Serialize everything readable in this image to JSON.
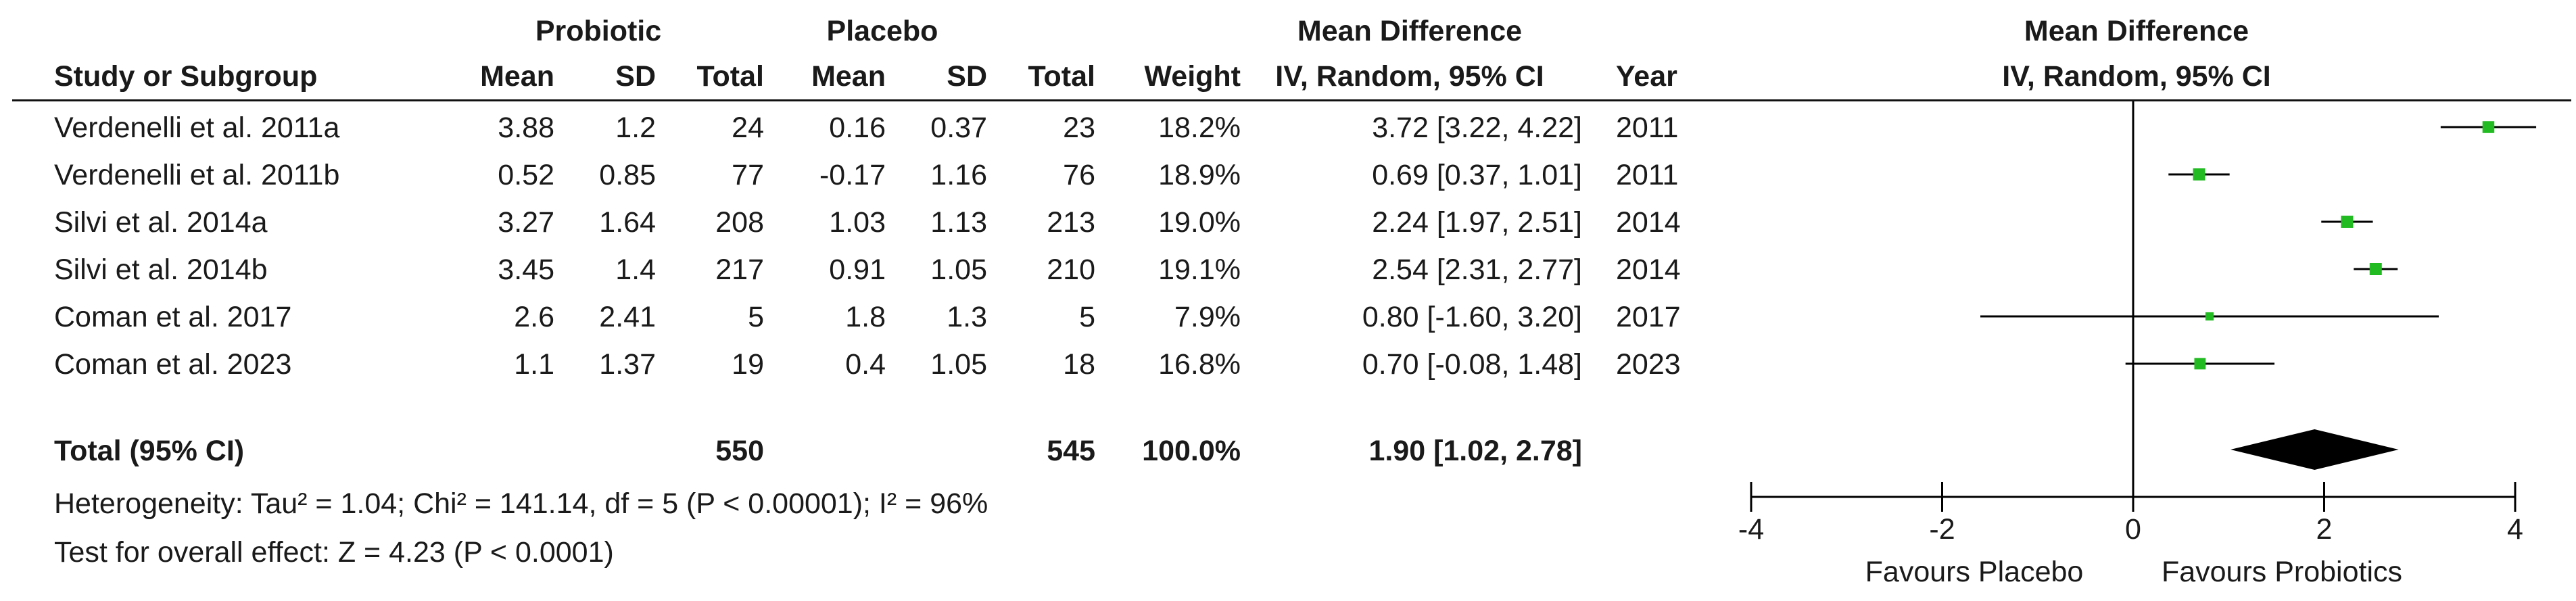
{
  "headers": {
    "probiotic_group": "Probiotic",
    "placebo_group": "Placebo",
    "md_group": "Mean Difference",
    "study_col": "Study or Subgroup",
    "mean_col": "Mean",
    "sd_col": "SD",
    "total_col": "Total",
    "weight_col": "Weight",
    "md_method": "IV, Random, 95% CI",
    "year_col": "Year",
    "plot_title": "Mean Difference",
    "plot_method": "IV, Random, 95% CI"
  },
  "studies": [
    {
      "name": "Verdenelli et al. 2011a",
      "p_mean": "3.88",
      "p_sd": "1.2",
      "p_total": "24",
      "c_mean": "0.16",
      "c_sd": "0.37",
      "c_total": "23",
      "weight": "18.2%",
      "ci_text": "3.72 [3.22, 4.22]",
      "year": "2011"
    },
    {
      "name": "Verdenelli et al. 2011b",
      "p_mean": "0.52",
      "p_sd": "0.85",
      "p_total": "77",
      "c_mean": "-0.17",
      "c_sd": "1.16",
      "c_total": "76",
      "weight": "18.9%",
      "ci_text": "0.69 [0.37, 1.01]",
      "year": "2011"
    },
    {
      "name": "Silvi et al. 2014a",
      "p_mean": "3.27",
      "p_sd": "1.64",
      "p_total": "208",
      "c_mean": "1.03",
      "c_sd": "1.13",
      "c_total": "213",
      "weight": "19.0%",
      "ci_text": "2.24 [1.97, 2.51]",
      "year": "2014"
    },
    {
      "name": "Silvi et al. 2014b",
      "p_mean": "3.45",
      "p_sd": "1.4",
      "p_total": "217",
      "c_mean": "0.91",
      "c_sd": "1.05",
      "c_total": "210",
      "weight": "19.1%",
      "ci_text": "2.54 [2.31, 2.77]",
      "year": "2014"
    },
    {
      "name": "Coman et al. 2017",
      "p_mean": "2.6",
      "p_sd": "2.41",
      "p_total": "5",
      "c_mean": "1.8",
      "c_sd": "1.3",
      "c_total": "5",
      "weight": "7.9%",
      "ci_text": "0.80 [-1.60, 3.20]",
      "year": "2017"
    },
    {
      "name": "Coman et al. 2023",
      "p_mean": "1.1",
      "p_sd": "1.37",
      "p_total": "19",
      "c_mean": "0.4",
      "c_sd": "1.05",
      "c_total": "18",
      "weight": "16.8%",
      "ci_text": "0.70 [-0.08, 1.48]",
      "year": "2023"
    }
  ],
  "total": {
    "label": "Total (95% CI)",
    "p_total": "550",
    "c_total": "545",
    "weight": "100.0%",
    "ci_text": "1.90 [1.02, 2.78]"
  },
  "heterogeneity": "Heterogeneity: Tau² = 1.04; Chi² = 141.14, df = 5 (P < 0.00001); I² = 96%",
  "overall_effect": "Test for overall effect: Z = 4.23 (P < 0.0001)",
  "favours_left": "Favours Placebo",
  "favours_right": "Favours Probiotics",
  "colors": {
    "marker": "#22bb22",
    "diamond": "#000000",
    "line": "#000000"
  },
  "chart_data": {
    "type": "scatter",
    "subtype": "forest-plot",
    "title": "Mean Difference",
    "subtitle": "IV, Random, 95% CI",
    "xlim": [
      -4,
      4
    ],
    "xticks": [
      -4,
      -2,
      0,
      2,
      4
    ],
    "xtick_labels": [
      "-4",
      "-2",
      "0",
      "2",
      "4"
    ],
    "null_line": 0,
    "points": [
      {
        "study": "Verdenelli et al. 2011a",
        "md": 3.72,
        "lo": 3.22,
        "hi": 4.22,
        "weight": 18.2
      },
      {
        "study": "Verdenelli et al. 2011b",
        "md": 0.69,
        "lo": 0.37,
        "hi": 1.01,
        "weight": 18.9
      },
      {
        "study": "Silvi et al. 2014a",
        "md": 2.24,
        "lo": 1.97,
        "hi": 2.51,
        "weight": 19.0
      },
      {
        "study": "Silvi et al. 2014b",
        "md": 2.54,
        "lo": 2.31,
        "hi": 2.77,
        "weight": 19.1
      },
      {
        "study": "Coman et al. 2017",
        "md": 0.8,
        "lo": -1.6,
        "hi": 3.2,
        "weight": 7.9
      },
      {
        "study": "Coman et al. 2023",
        "md": 0.7,
        "lo": -0.08,
        "hi": 1.48,
        "weight": 16.8
      }
    ],
    "pooled": {
      "md": 1.9,
      "lo": 1.02,
      "hi": 2.78
    }
  }
}
